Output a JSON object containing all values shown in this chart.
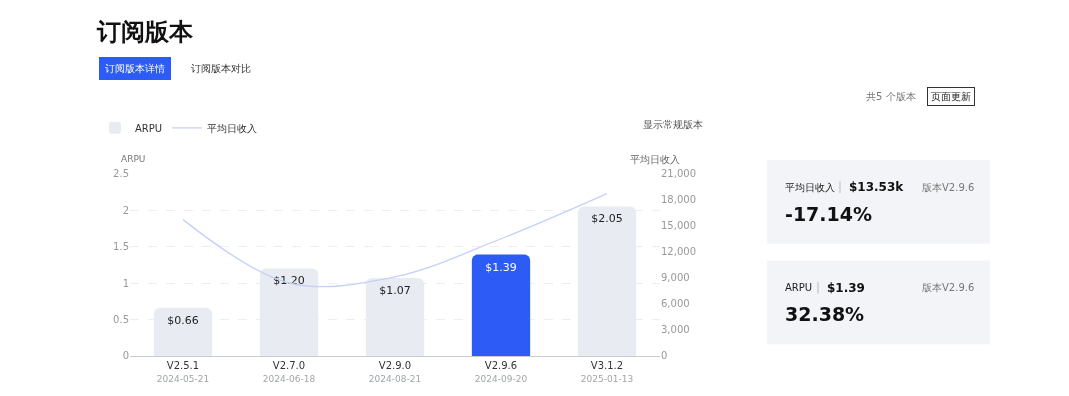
{
  "chart_data": [
    {
      "type": "bar",
      "title": "订阅版本",
      "ylabel": "ARPU",
      "y2label": "平均日收入",
      "annotations": [
        "订阅版本详情",
        "订阅版本对比",
        "共5 个版本",
        "页面更新",
        "显示常规版本"
      ],
      "categories": [
        "V2.5.1\n2024-05-21",
        "V2.7.0\n2024-06-18",
        "V2.9.0\n2024-08-21",
        "V2.9.6\n2024-09-20",
        "V3.1.2\n2025-01-13"
      ],
      "series": [
        {
          "name": "ARPU",
          "type": "bar",
          "colors": [
            "#e8ecf2",
            "#e8ecf2",
            "#e8ecf2",
            "#2d5bf5",
            "#e8ecf2"
          ],
          "values": [
            0.66,
            1.2,
            1.07,
            1.39,
            2.05
          ],
          "value_labels": [
            "$0.66",
            "$1.20",
            "$1.07",
            "$1.39",
            "$2.05"
          ]
        },
        {
          "name": "平均日收入",
          "type": "line",
          "axis": "y2",
          "color": "#c5d0f7",
          "values": [
            15700,
            8400,
            9100,
            13500,
            18700
          ]
        }
      ],
      "ylim": [
        0,
        2.5
      ],
      "yticks": [
        0,
        0.5,
        1,
        1.5,
        2,
        2.5
      ],
      "y2lim": [
        0,
        21000
      ],
      "y2ticks": [
        0,
        {
          "value": 3000,
          "label": "3,000"
        },
        {
          "value": 6000,
          "label": "6,000"
        },
        {
          "value": 9000,
          "label": "9,000"
        },
        {
          "value": 12000,
          "label": "12,000"
        },
        {
          "value": 15000,
          "label": "15,000"
        },
        {
          "value": 18000,
          "label": "18,000"
        },
        {
          "value": 21000,
          "label": "21,000"
        }
      ],
      "grid": "y",
      "legend": "top left",
      "marker": "none",
      "line_style": "solid"
    },
    {
      "type": "other",
      "annotations": [
        "平均日收入",
        "$13.53k",
        "版本V2.9.6",
        "-17.14%"
      ]
    },
    {
      "type": "other",
      "annotations": [
        "ARPU",
        "$1.39",
        "版本V2.9.6",
        "32.38%"
      ]
    }
  ]
}
